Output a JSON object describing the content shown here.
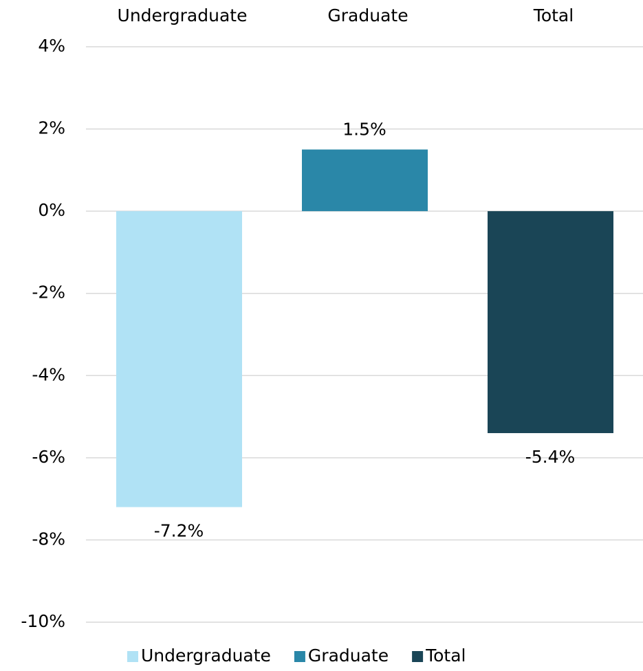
{
  "chart_data": {
    "type": "bar",
    "categories": [
      "Undergraduate",
      "Graduate",
      "Total"
    ],
    "series": [
      {
        "name": "Undergraduate",
        "color": "#b0e2f5",
        "values": [
          -7.2,
          null,
          null
        ],
        "value_labels": [
          "-7.2%",
          null,
          null
        ]
      },
      {
        "name": "Graduate",
        "color": "#2a87a8",
        "values": [
          null,
          1.5,
          null
        ],
        "value_labels": [
          null,
          "1.5%",
          null
        ]
      },
      {
        "name": "Total",
        "color": "#1a4556",
        "values": [
          null,
          null,
          -5.4
        ],
        "value_labels": [
          null,
          null,
          "-5.4%"
        ]
      }
    ],
    "ylim": [
      -10,
      4
    ],
    "yticks": [
      {
        "value": -10,
        "label": "-10%"
      },
      {
        "value": -8,
        "label": "-8%"
      },
      {
        "value": -6,
        "label": "-6%"
      },
      {
        "value": -4,
        "label": "-4%"
      },
      {
        "value": -2,
        "label": "-2%"
      },
      {
        "value": 0,
        "label": "0%"
      },
      {
        "value": 2,
        "label": "2%"
      },
      {
        "value": 4,
        "label": "4%"
      }
    ],
    "grid": true,
    "legend": "bottom"
  }
}
